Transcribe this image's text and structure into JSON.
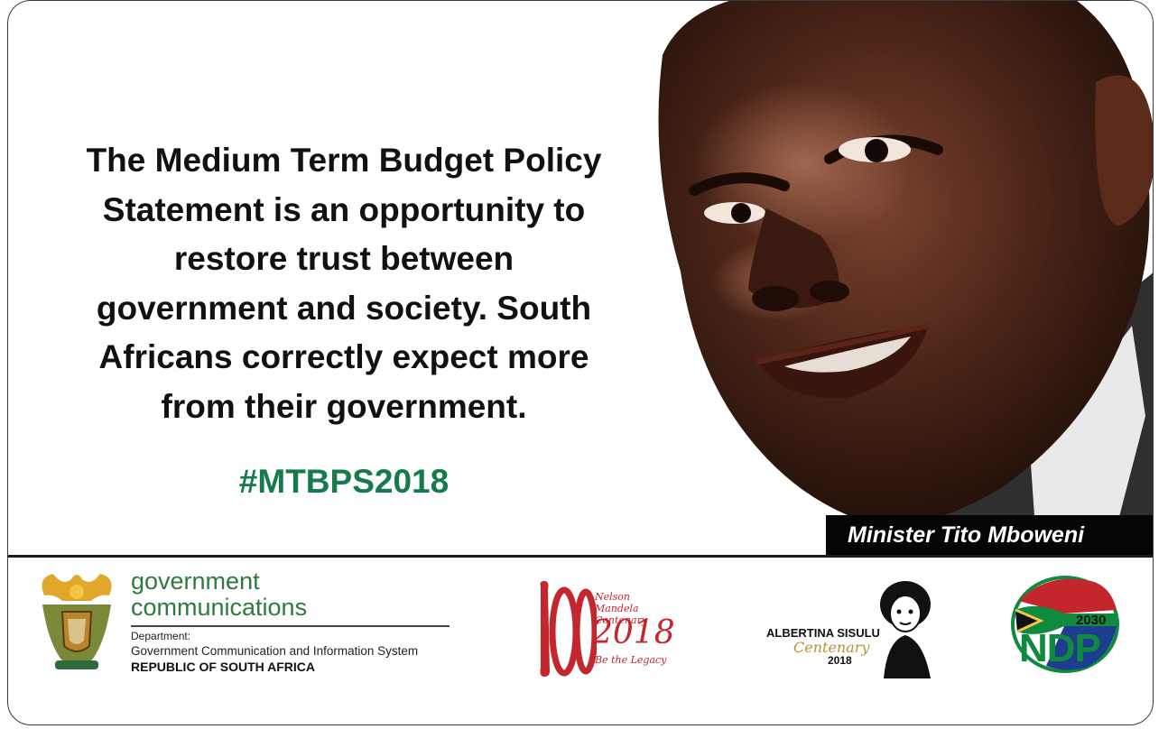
{
  "quote": "The Medium Term Budget Policy\nStatement is an opportunity to\nrestore trust between\ngovernment and society. South\nAfricans correctly expect more\nfrom their government.",
  "hashtag": "#MTBPS2018",
  "caption": "Minister Tito Mboweni",
  "colors": {
    "hashtag_green": "#157a4c",
    "caption_bg": "#050505",
    "mandela_red": "#c4262e",
    "ndp_green": "#0f8a3e"
  },
  "footer": {
    "gcis": {
      "icon": "coat-of-arms-icon",
      "org_line1": "government",
      "org_line2": "communications",
      "department_label": "Department:",
      "department_name": "Government Communication and Information System",
      "country": "REPUBLIC OF SOUTH AFRICA"
    },
    "mandela": {
      "number": "100",
      "small_text": "Nelson Mandela Centenary",
      "year": "2018",
      "tagline": "Be the Legacy"
    },
    "sisulu": {
      "icon": "albertina-sisulu-portrait-icon",
      "name": "ALBERTINA SISULU",
      "centenary": "Centenary",
      "year": "2018"
    },
    "ndp": {
      "icon": "south-african-flag-swoosh-icon",
      "year": "2030",
      "text": "NDP"
    }
  }
}
